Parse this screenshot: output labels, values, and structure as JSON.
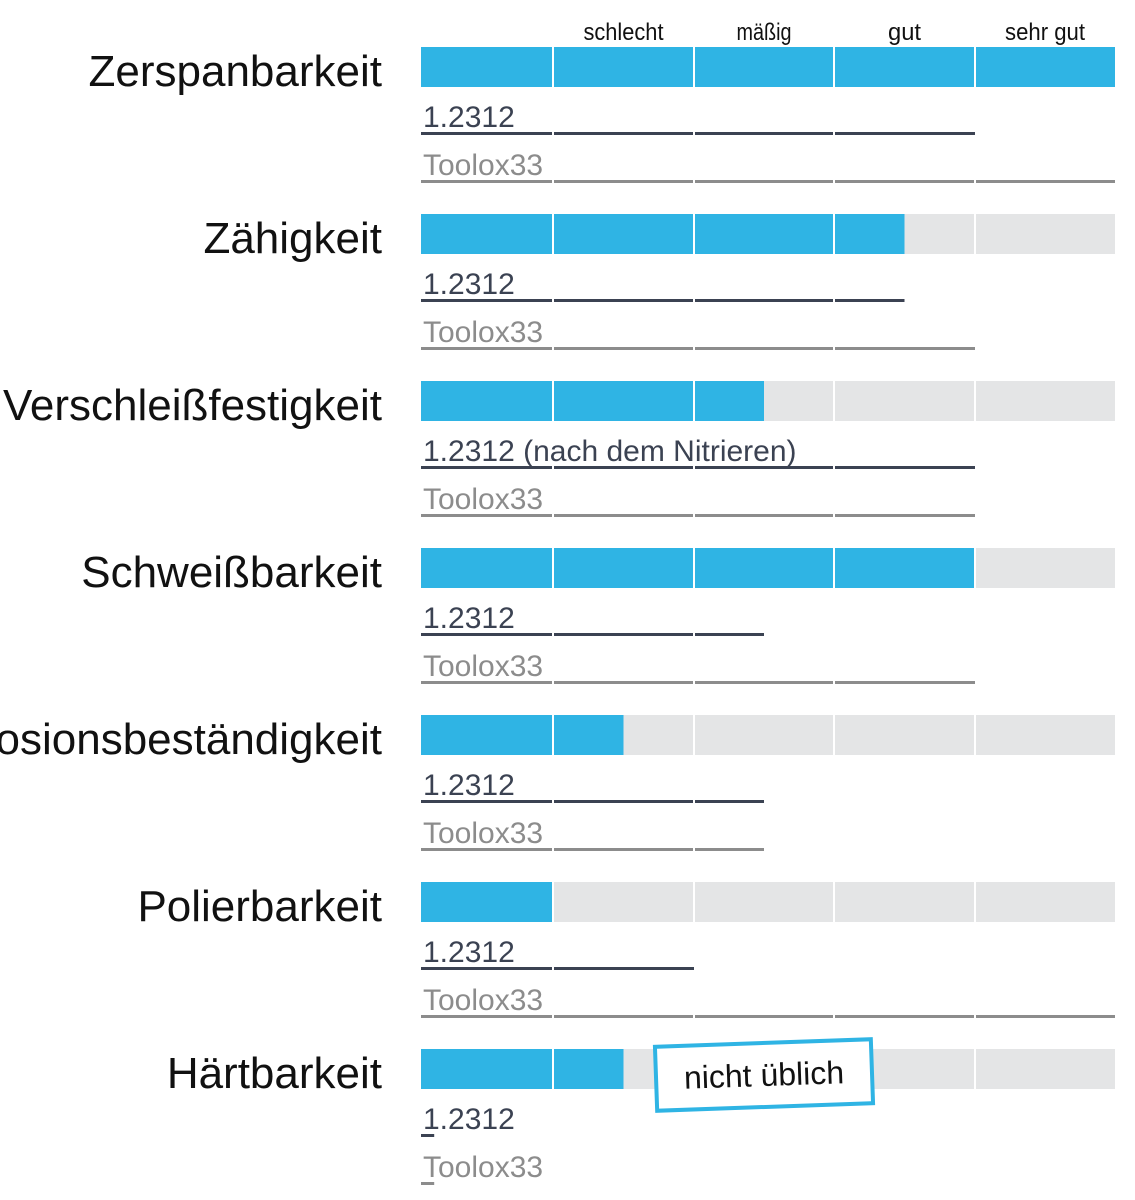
{
  "colors": {
    "accent": "#2fb4e4",
    "track": "#e4e5e6",
    "steel_line": "#3b4252",
    "toolox_line": "#8c8c8c",
    "steel_text": "#3b4252",
    "toolox_text": "#8c8c8c",
    "label_text": "#111111",
    "note_border": "#2fb4e4"
  },
  "chart_data": {
    "type": "bar",
    "scale_max": 5,
    "scale_labels": [
      "schlecht",
      "mäßig",
      "gut",
      "sehr gut"
    ],
    "grid": true,
    "rows": [
      {
        "property": "Zerspanbarkeit",
        "bar": 5,
        "steel": {
          "label": "1.2312",
          "value": 4
        },
        "toolox": {
          "label": "Toolox33",
          "value": 5
        }
      },
      {
        "property": "Zähigkeit",
        "bar": 3.5,
        "steel": {
          "label": "1.2312",
          "value": 3.5
        },
        "toolox": {
          "label": "Toolox33",
          "value": 4
        }
      },
      {
        "property": "Verschleißfestigkeit",
        "bar": 2.5,
        "steel": {
          "label": "1.2312 (nach dem Nitrieren)",
          "value": 4
        },
        "toolox": {
          "label": "Toolox33",
          "value": 4
        }
      },
      {
        "property": "Schweißbarkeit",
        "bar": 4,
        "steel": {
          "label": "1.2312",
          "value": 2.5
        },
        "toolox": {
          "label": "Toolox33",
          "value": 4
        }
      },
      {
        "property": "Korrosionsbeständigkeit",
        "bar": 1.5,
        "steel": {
          "label": "1.2312",
          "value": 2.5
        },
        "toolox": {
          "label": "Toolox33",
          "value": 2.5
        }
      },
      {
        "property": "Polierbarkeit",
        "bar": 1,
        "steel": {
          "label": "1.2312",
          "value": 2
        },
        "toolox": {
          "label": "Toolox33",
          "value": 5
        }
      },
      {
        "property": "Härtbarkeit",
        "bar": 1.5,
        "steel": {
          "label": "1.2312",
          "value": 0.1
        },
        "toolox": {
          "label": "Toolox33",
          "value": 0.1
        },
        "note": "nicht üblich"
      }
    ]
  }
}
